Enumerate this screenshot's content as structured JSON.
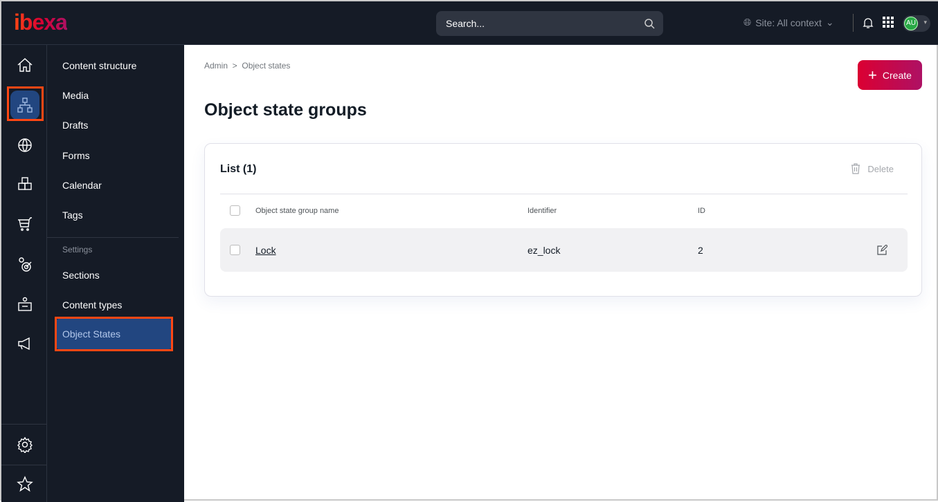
{
  "header": {
    "logo": "ibexa",
    "search_placeholder": "Search...",
    "site_context": "Site: All context",
    "user_initials": "AU"
  },
  "rail": {
    "items": [
      "home",
      "content",
      "site",
      "catalog",
      "commerce",
      "personalization",
      "customer-portal",
      "marketing"
    ],
    "bottom": [
      "settings",
      "bookmarks"
    ]
  },
  "subnav": {
    "items": [
      "Content structure",
      "Media",
      "Drafts",
      "Forms",
      "Calendar",
      "Tags"
    ],
    "settings_label": "Settings",
    "settings_items": [
      "Sections",
      "Content types",
      "Object States"
    ]
  },
  "breadcrumb": [
    "Admin",
    "Object states"
  ],
  "page_title": "Object state groups",
  "create_label": "Create",
  "list": {
    "title": "List (1)",
    "delete_label": "Delete",
    "columns": [
      "Object state group name",
      "Identifier",
      "ID"
    ],
    "rows": [
      {
        "name": "Lock",
        "identifier": "ez_lock",
        "id": "2"
      }
    ]
  },
  "colors": {
    "accent": "#db0032",
    "highlight": "#ff4713",
    "active": "#224680"
  }
}
